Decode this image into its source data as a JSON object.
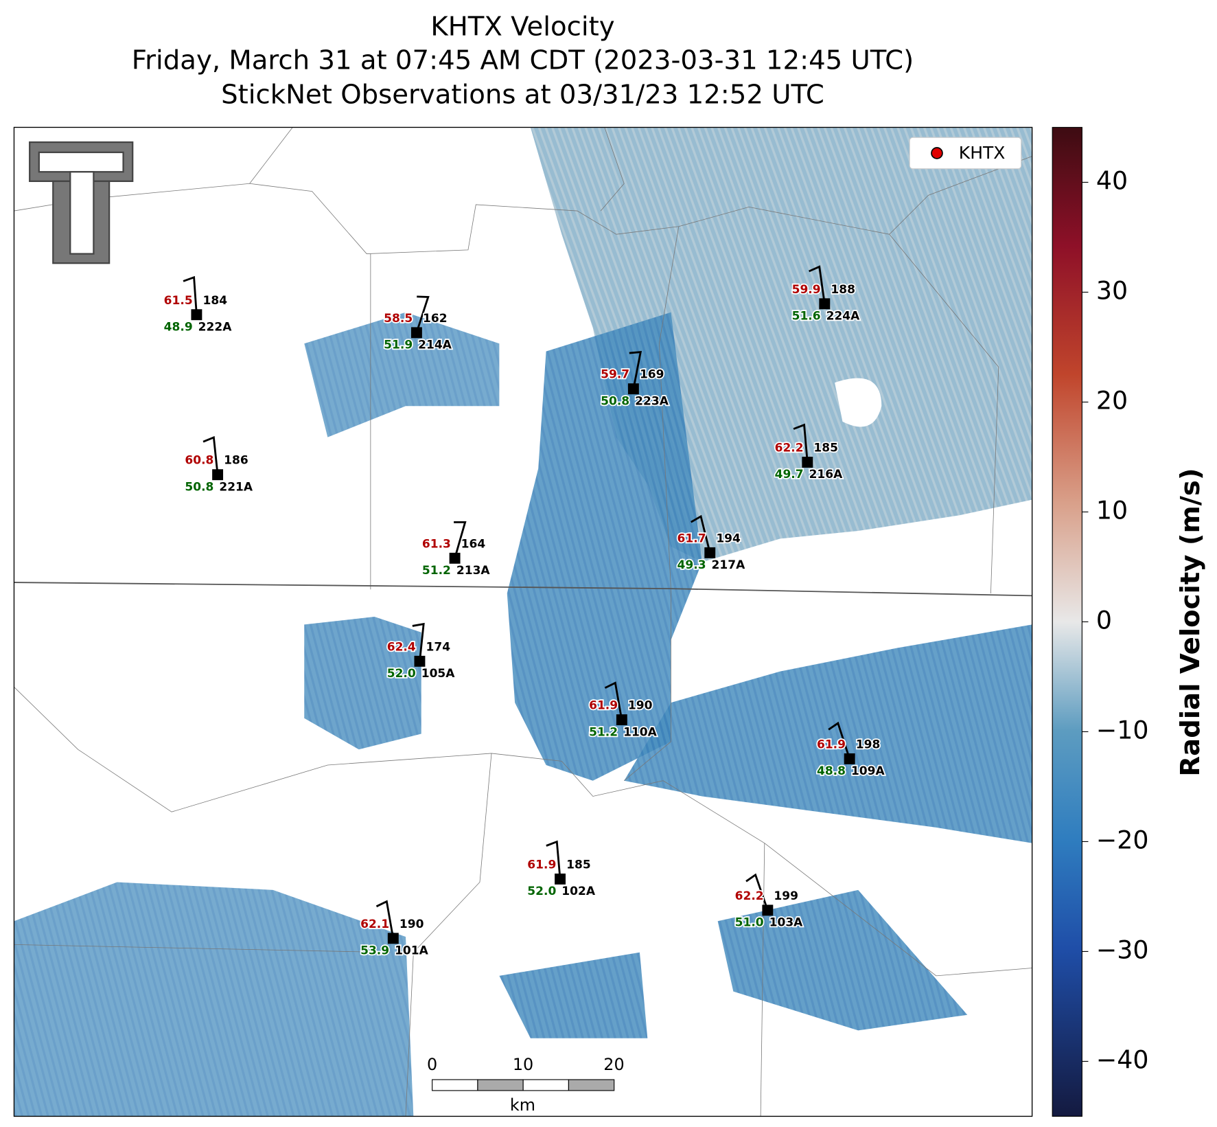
{
  "title": "KHTX Velocity",
  "subtitle": "Friday, March 31 at 07:45 AM CDT (2023-03-31 12:45 UTC)",
  "subtitle2": "StickNet Observations at 03/31/23 12:52 UTC",
  "legend": {
    "label": "KHTX",
    "color": "#e00000"
  },
  "colorbar": {
    "label": "Radial Velocity (m/s)",
    "clim": [
      -45,
      45
    ],
    "ticks": [
      {
        "value": -40,
        "label": "−40"
      },
      {
        "value": -30,
        "label": "−30"
      },
      {
        "value": -20,
        "label": "−20"
      },
      {
        "value": -10,
        "label": "−10"
      },
      0,
      10,
      20,
      30,
      40
    ]
  },
  "scale_bar": {
    "ticks": [
      0,
      10,
      20
    ],
    "unit": "km"
  },
  "stations": [
    {
      "id": "222A",
      "temp": "61.5",
      "dewpoint": "48.9",
      "wind_dir": 184
    },
    {
      "id": "214A",
      "temp": "58.5",
      "dewpoint": "51.9",
      "wind_dir": 162
    },
    {
      "id": "223A",
      "temp": "59.7",
      "dewpoint": "50.8",
      "wind_dir": 169
    },
    {
      "id": "224A",
      "temp": "59.9",
      "dewpoint": "51.6",
      "wind_dir": 188
    },
    {
      "id": "221A",
      "temp": "60.8",
      "dewpoint": "50.8",
      "wind_dir": 186
    },
    {
      "id": "216A",
      "temp": "62.2",
      "dewpoint": "49.7",
      "wind_dir": 185
    },
    {
      "id": "213A",
      "temp": "61.3",
      "dewpoint": "51.2",
      "wind_dir": 164
    },
    {
      "id": "217A",
      "temp": "61.7",
      "dewpoint": "49.3",
      "wind_dir": 194
    },
    {
      "id": "105A",
      "temp": "62.4",
      "dewpoint": "52.0",
      "wind_dir": 174
    },
    {
      "id": "110A",
      "temp": "61.9",
      "dewpoint": "51.2",
      "wind_dir": 190
    },
    {
      "id": "109A",
      "temp": "61.9",
      "dewpoint": "48.8",
      "wind_dir": 198
    },
    {
      "id": "102A",
      "temp": "61.9",
      "dewpoint": "52.0",
      "wind_dir": 185
    },
    {
      "id": "103A",
      "temp": "62.2",
      "dewpoint": "51.0",
      "wind_dir": 199
    },
    {
      "id": "101A",
      "temp": "62.1",
      "dewpoint": "53.9",
      "wind_dir": 190
    }
  ]
}
